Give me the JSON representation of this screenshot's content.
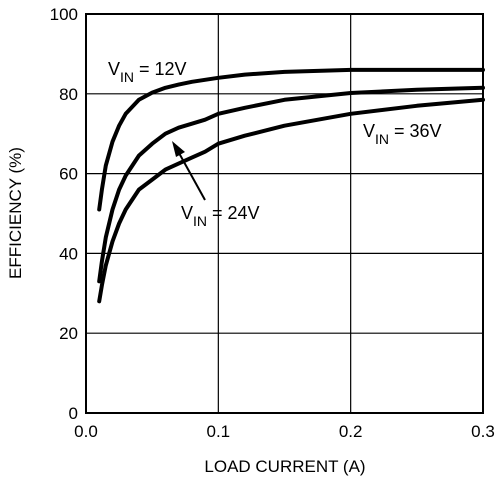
{
  "chart_data": {
    "type": "line",
    "xlabel": "LOAD CURRENT (A)",
    "ylabel": "EFFICIENCY (%)",
    "xlim": [
      0.0,
      0.3
    ],
    "ylim": [
      0,
      100
    ],
    "x_ticks": [
      0.0,
      0.1,
      0.2,
      0.3
    ],
    "x_tick_labels": [
      "0.0",
      "0.1",
      "0.2",
      "0.3"
    ],
    "y_ticks": [
      0,
      20,
      40,
      60,
      80,
      100
    ],
    "y_tick_labels": [
      "0",
      "20",
      "40",
      "60",
      "80",
      "100"
    ],
    "grid": true,
    "line_color": "#000000",
    "series": [
      {
        "label_main": "V",
        "label_sub": "IN",
        "label_rest": " = 12V",
        "x": [
          0.01,
          0.012,
          0.015,
          0.02,
          0.025,
          0.03,
          0.04,
          0.05,
          0.06,
          0.07,
          0.08,
          0.1,
          0.12,
          0.15,
          0.2,
          0.25,
          0.3
        ],
        "y": [
          51,
          56,
          62,
          68,
          72,
          75,
          78.5,
          80.3,
          81.5,
          82.3,
          83,
          84,
          84.8,
          85.5,
          86,
          86,
          86
        ]
      },
      {
        "label_main": "V",
        "label_sub": "IN",
        "label_rest": " = 24V",
        "x": [
          0.01,
          0.012,
          0.015,
          0.02,
          0.025,
          0.03,
          0.04,
          0.05,
          0.06,
          0.07,
          0.08,
          0.09,
          0.1,
          0.12,
          0.15,
          0.2,
          0.25,
          0.3
        ],
        "y": [
          33,
          38,
          44,
          51,
          56,
          59.5,
          64.5,
          67.5,
          70,
          71.5,
          72.5,
          73.5,
          75,
          76.5,
          78.5,
          80.2,
          81,
          81.5
        ]
      },
      {
        "label_main": "V",
        "label_sub": "IN",
        "label_rest": " = 36V",
        "x": [
          0.01,
          0.012,
          0.015,
          0.02,
          0.025,
          0.03,
          0.04,
          0.05,
          0.06,
          0.07,
          0.08,
          0.09,
          0.1,
          0.12,
          0.15,
          0.2,
          0.25,
          0.3
        ],
        "y": [
          28,
          32,
          37,
          43,
          47.5,
          51,
          56,
          58.5,
          61,
          62.5,
          64,
          65.5,
          67.5,
          69.5,
          72,
          75,
          77,
          78.5
        ]
      }
    ]
  }
}
